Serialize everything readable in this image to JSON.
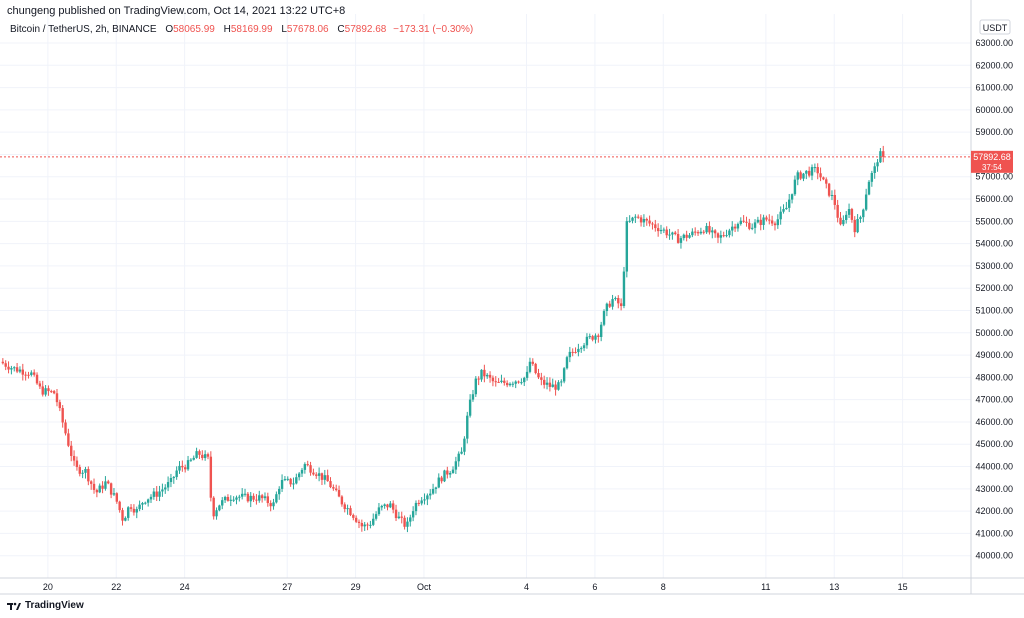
{
  "publisher": "chungeng published on TradingView.com, Oct 14, 2021 13:22 UTC+8",
  "legend": {
    "symbol": "Bitcoin / TetherUS, 2h, BINANCE",
    "o_label": "O",
    "o_value": "58065.99",
    "h_label": "H",
    "h_value": "58169.99",
    "l_label": "L",
    "l_value": "57678.06",
    "c_label": "C",
    "c_value": "57892.68",
    "change": "−173.31 (−0.30%)"
  },
  "currency": "USDT",
  "last_price": {
    "price": "57892.68",
    "countdown": "37:54"
  },
  "footer": {
    "brand": "TradingView"
  },
  "colors": {
    "up": "#26a69a",
    "down": "#ef5350",
    "grid": "#f0f3fa",
    "axis_text": "#131722"
  },
  "chart_data": {
    "type": "candlestick",
    "title": "Bitcoin / TetherUS, 2h, BINANCE",
    "y_ticks": [
      40000,
      41000,
      42000,
      43000,
      44000,
      45000,
      46000,
      47000,
      48000,
      49000,
      50000,
      51000,
      52000,
      53000,
      54000,
      55000,
      56000,
      57000,
      58000,
      59000,
      60000,
      61000,
      62000,
      63000
    ],
    "y_tick_labels": [
      "40000.00",
      "41000.00",
      "42000.00",
      "43000.00",
      "44000.00",
      "45000.00",
      "46000.00",
      "47000.00",
      "48000.00",
      "49000.00",
      "50000.00",
      "51000.00",
      "52000.00",
      "53000.00",
      "54000.00",
      "55000.00",
      "56000.00",
      "57000.00",
      "58000.00",
      "59000.00",
      "60000.00",
      "61000.00",
      "62000.00",
      "63000.00"
    ],
    "ylim": [
      39000,
      64300
    ],
    "x_ticks": [
      {
        "label": "20",
        "day": 20
      },
      {
        "label": "22",
        "day": 22
      },
      {
        "label": "24",
        "day": 24
      },
      {
        "label": "27",
        "day": 27
      },
      {
        "label": "29",
        "day": 29
      },
      {
        "label": "Oct",
        "day": 31
      },
      {
        "label": "4",
        "day": 34
      },
      {
        "label": "6",
        "day": 36
      },
      {
        "label": "8",
        "day": 38
      },
      {
        "label": "11",
        "day": 41
      },
      {
        "label": "13",
        "day": 43
      },
      {
        "label": "15",
        "day": 45
      }
    ],
    "xlim": [
      18.6,
      47.0
    ],
    "grid": true,
    "last_price": 57892.68,
    "keypoints": [
      [
        18.6,
        48700
      ],
      [
        19.0,
        48400
      ],
      [
        19.5,
        48200
      ],
      [
        19.8,
        47400
      ],
      [
        20.2,
        47300
      ],
      [
        20.5,
        45600
      ],
      [
        20.8,
        43900
      ],
      [
        21.1,
        43800
      ],
      [
        21.4,
        42800
      ],
      [
        21.7,
        43300
      ],
      [
        22.0,
        42500
      ],
      [
        22.2,
        41600
      ],
      [
        22.4,
        42300
      ],
      [
        22.6,
        42000
      ],
      [
        22.8,
        42500
      ],
      [
        23.2,
        42800
      ],
      [
        23.6,
        43300
      ],
      [
        23.8,
        43900
      ],
      [
        24.1,
        44100
      ],
      [
        24.4,
        44600
      ],
      [
        24.7,
        44300
      ],
      [
        24.8,
        41800
      ],
      [
        25.0,
        42300
      ],
      [
        25.4,
        42700
      ],
      [
        25.8,
        42600
      ],
      [
        26.2,
        42600
      ],
      [
        26.6,
        42300
      ],
      [
        26.8,
        43300
      ],
      [
        27.2,
        43300
      ],
      [
        27.5,
        44100
      ],
      [
        27.8,
        43800
      ],
      [
        28.2,
        43300
      ],
      [
        28.6,
        42400
      ],
      [
        28.9,
        41900
      ],
      [
        29.2,
        41300
      ],
      [
        29.4,
        41400
      ],
      [
        29.7,
        42100
      ],
      [
        30.0,
        42300
      ],
      [
        30.3,
        41600
      ],
      [
        30.5,
        41300
      ],
      [
        30.7,
        42200
      ],
      [
        30.9,
        42600
      ],
      [
        31.2,
        42900
      ],
      [
        31.5,
        43500
      ],
      [
        31.8,
        43900
      ],
      [
        32.1,
        44600
      ],
      [
        32.3,
        46500
      ],
      [
        32.5,
        47800
      ],
      [
        32.7,
        48200
      ],
      [
        33.1,
        47700
      ],
      [
        33.5,
        47800
      ],
      [
        34.0,
        48000
      ],
      [
        34.1,
        48700
      ],
      [
        34.4,
        47800
      ],
      [
        34.7,
        47600
      ],
      [
        35.0,
        47600
      ],
      [
        35.2,
        48900
      ],
      [
        35.5,
        49400
      ],
      [
        35.8,
        49700
      ],
      [
        36.1,
        50000
      ],
      [
        36.3,
        51000
      ],
      [
        36.5,
        51500
      ],
      [
        36.7,
        51300
      ],
      [
        36.8,
        51000
      ],
      [
        36.9,
        54800
      ],
      [
        37.2,
        55200
      ],
      [
        37.6,
        54900
      ],
      [
        38.0,
        54600
      ],
      [
        38.4,
        54200
      ],
      [
        38.8,
        54400
      ],
      [
        39.2,
        54700
      ],
      [
        39.6,
        54200
      ],
      [
        39.9,
        54600
      ],
      [
        40.2,
        55000
      ],
      [
        40.6,
        54800
      ],
      [
        41.0,
        55100
      ],
      [
        41.3,
        55000
      ],
      [
        41.6,
        55600
      ],
      [
        41.9,
        57000
      ],
      [
        42.2,
        57200
      ],
      [
        42.5,
        57300
      ],
      [
        42.7,
        56700
      ],
      [
        43.0,
        55900
      ],
      [
        43.2,
        54600
      ],
      [
        43.4,
        55700
      ],
      [
        43.6,
        54700
      ],
      [
        43.8,
        55300
      ],
      [
        44.0,
        56800
      ],
      [
        44.2,
        57400
      ],
      [
        44.3,
        58000
      ],
      [
        44.45,
        57893
      ]
    ]
  }
}
